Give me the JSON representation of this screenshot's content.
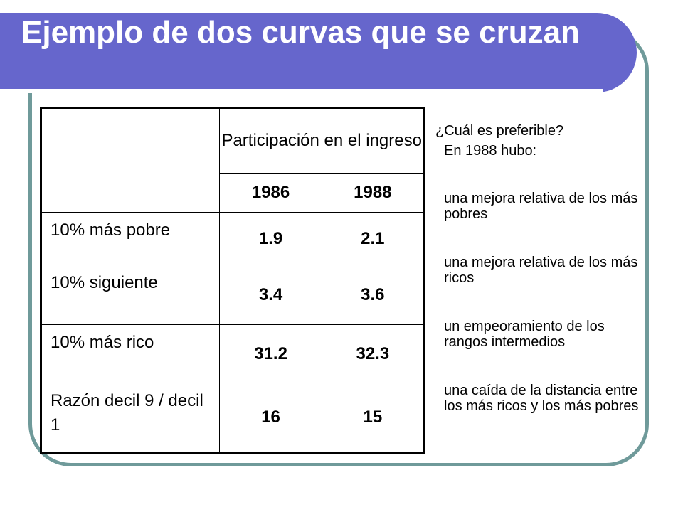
{
  "slide": {
    "title": "Ejemplo de dos curvas que se cruzan"
  },
  "table": {
    "header_group": "Participación en el ingreso",
    "years": [
      "1986",
      "1988"
    ],
    "rows": [
      {
        "label": "10% más pobre",
        "v1986": "1.9",
        "v1988": "2.1"
      },
      {
        "label": "10% siguiente",
        "v1986": "3.4",
        "v1988": "3.6"
      },
      {
        "label": "10% más rico",
        "v1986": "31.2",
        "v1988": "32.3"
      },
      {
        "label": "Razón decil 9 / decil 1",
        "v1986": "16",
        "v1988": "15"
      }
    ]
  },
  "side": {
    "question": "¿Cuál es preferible?",
    "intro": "En 1988 hubo:",
    "options": [
      "una mejora relativa de los más pobres",
      "una mejora relativa de los más ricos",
      "un empeoramiento de los rangos intermedios",
      "una caída de la distancia entre los más ricos y los más pobres"
    ]
  },
  "colors": {
    "title_bar": "#6666cc",
    "frame": "#6f9a9a",
    "title_text": "#ffffff"
  }
}
